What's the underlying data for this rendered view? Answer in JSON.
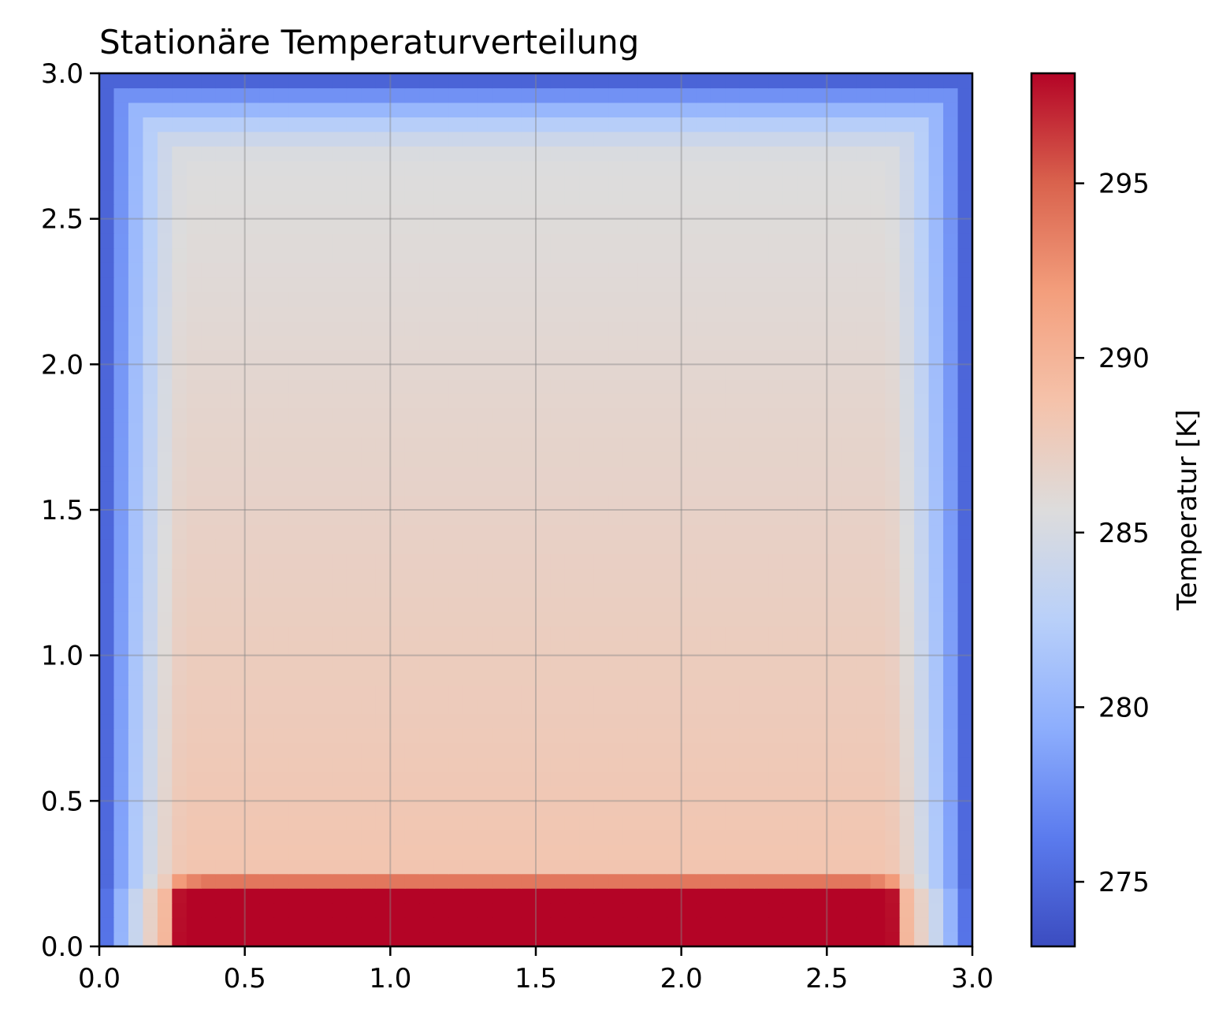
{
  "chart_data": {
    "type": "heatmap",
    "title": "Stationäre Temperaturverteilung",
    "xlabel": "",
    "ylabel": "",
    "xlim": [
      0.0,
      3.0
    ],
    "ylim": [
      0.0,
      3.0
    ],
    "x_ticks": [
      "0.0",
      "0.5",
      "1.0",
      "1.5",
      "2.0",
      "2.5",
      "3.0"
    ],
    "y_ticks": [
      "0.0",
      "0.5",
      "1.0",
      "1.5",
      "2.0",
      "2.5",
      "3.0"
    ],
    "grid": true,
    "grid_cells": 60,
    "cell_size": 0.05,
    "colormap": "coolwarm",
    "colorbar": {
      "label": "Temperatur [K]",
      "vmin": 273.15,
      "vmax": 298.15,
      "ticks": [
        "275",
        "280",
        "285",
        "290",
        "295"
      ],
      "tick_values": [
        275,
        280,
        285,
        290,
        295
      ]
    },
    "model": {
      "boundary_temperature": 273.15,
      "heater_temperature": 298.15,
      "heater_x_range": [
        0.35,
        2.65
      ],
      "heater_y_range": [
        0.0,
        0.05
      ],
      "interior_top": 285.2,
      "interior_bottom": 288.7
    }
  }
}
